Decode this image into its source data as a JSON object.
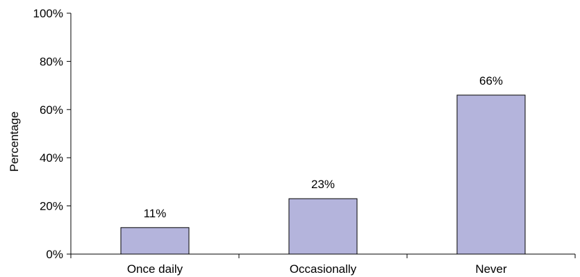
{
  "chart_data": {
    "type": "bar",
    "categories": [
      "Once daily",
      "Occasionally",
      "Never"
    ],
    "values": [
      11,
      23,
      66
    ],
    "data_labels": [
      "11%",
      "23%",
      "66%"
    ],
    "xlabel": "",
    "ylabel": "Percentage",
    "ylim": [
      0,
      100
    ],
    "yticks": [
      {
        "value": 0,
        "label": "0%"
      },
      {
        "value": 20,
        "label": "20%"
      },
      {
        "value": 40,
        "label": "40%"
      },
      {
        "value": 60,
        "label": "60%"
      },
      {
        "value": 80,
        "label": "80%"
      },
      {
        "value": 100,
        "label": "100%"
      }
    ],
    "grid": false,
    "legend": "none",
    "bar_color": "#b4b4dc",
    "bar_edge_color": "#000000"
  }
}
